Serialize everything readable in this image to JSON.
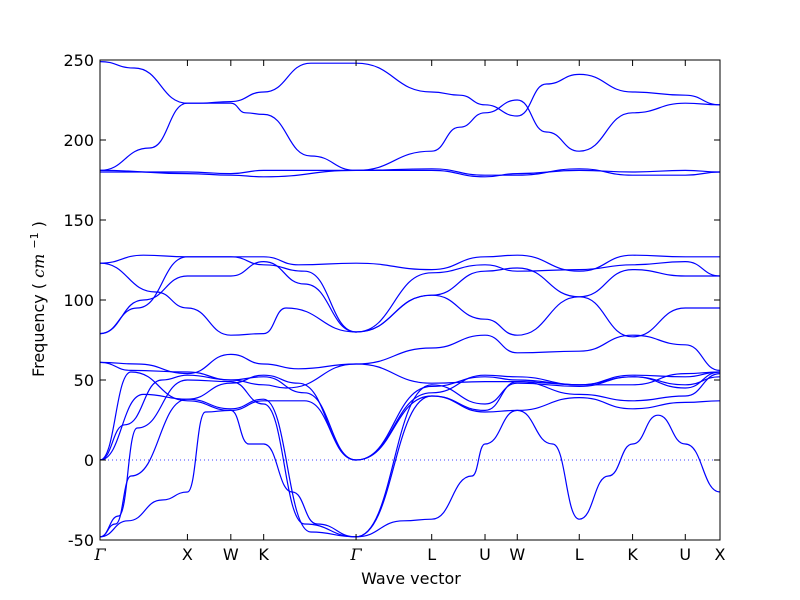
{
  "chart_data": {
    "type": "line",
    "xlabel": "Wave vector",
    "ylabel_text": "Frequency",
    "ylabel_unit_base": "cm",
    "ylabel_unit_exp": "−1",
    "ylim": [
      -50,
      250
    ],
    "yticks": [
      -50,
      0,
      50,
      100,
      150,
      200,
      250
    ],
    "xlim": [
      0,
      10
    ],
    "kpoints": [
      {
        "label": "Γ",
        "x": 0.0
      },
      {
        "label": "X",
        "x": 1.41
      },
      {
        "label": "W",
        "x": 2.11
      },
      {
        "label": "K",
        "x": 2.64
      },
      {
        "label": "Γ",
        "x": 4.13
      },
      {
        "label": "L",
        "x": 5.35
      },
      {
        "label": "U",
        "x": 6.21
      },
      {
        "label": "W",
        "x": 6.73
      },
      {
        "label": "L",
        "x": 7.73
      },
      {
        "label": "K",
        "x": 8.59
      },
      {
        "label": "U",
        "x": 9.44
      },
      {
        "label": "X",
        "x": 10.0
      }
    ],
    "zero_line": {
      "y": 0,
      "style": "dotted"
    },
    "color": "#0000ff",
    "grid": false,
    "series": [
      {
        "x": [
          0,
          0.55,
          1.41,
          1.6,
          2.11,
          2.64,
          3.4,
          4.13,
          5.35,
          5.8,
          6.21,
          6.73,
          7.2,
          7.73,
          8.59,
          9.44,
          10.0
        ],
        "y": [
          249,
          245,
          223,
          223,
          224,
          230,
          248,
          248,
          230,
          228,
          222,
          215,
          235,
          241,
          230,
          228,
          222
        ]
      },
      {
        "x": [
          0,
          0.8,
          1.41,
          2.11,
          2.35,
          2.64,
          3.4,
          4.13,
          5.35,
          5.8,
          6.21,
          6.73,
          7.2,
          7.73,
          8.59,
          9.44,
          10.0
        ],
        "y": [
          181,
          195,
          223,
          223,
          217,
          216,
          190,
          181,
          193,
          208,
          217,
          225,
          205,
          193,
          217,
          223,
          222
        ]
      },
      {
        "x": [
          0,
          1.41,
          2.11,
          2.64,
          4.13,
          5.35,
          6.21,
          6.73,
          7.73,
          8.59,
          9.44,
          10.0
        ],
        "y": [
          181,
          179,
          178,
          177,
          181,
          182,
          178,
          178,
          182,
          178,
          178,
          180
        ]
      },
      {
        "x": [
          0,
          1.41,
          2.11,
          2.64,
          4.13,
          5.35,
          6.21,
          6.73,
          7.73,
          8.59,
          9.44,
          10.0
        ],
        "y": [
          180,
          180,
          179,
          181,
          181,
          181,
          177,
          179,
          181,
          180,
          181,
          180
        ]
      },
      {
        "x": [
          0,
          0.7,
          1.41,
          2.11,
          2.64,
          3.2,
          4.13,
          5.35,
          6.21,
          6.73,
          7.73,
          8.59,
          9.44,
          10.0
        ],
        "y": [
          123,
          128,
          127,
          127,
          127,
          122,
          123,
          119,
          127,
          128,
          118,
          128,
          127,
          127
        ]
      },
      {
        "x": [
          0,
          0.9,
          1.41,
          2.11,
          2.64,
          3.0,
          4.13,
          5.35,
          6.21,
          6.73,
          7.73,
          8.59,
          9.44,
          10.0
        ],
        "y": [
          123,
          105,
          95,
          78,
          79,
          95,
          80,
          103,
          88,
          78,
          102,
          77,
          95,
          95
        ]
      },
      {
        "x": [
          0,
          0.7,
          1.41,
          2.11,
          2.64,
          3.3,
          4.13,
          5.35,
          6.21,
          6.73,
          7.73,
          8.59,
          9.44,
          10.0
        ],
        "y": [
          79,
          100,
          115,
          115,
          124,
          110,
          80,
          117,
          122,
          118,
          119,
          122,
          124,
          115
        ]
      },
      {
        "x": [
          0,
          0.6,
          1.41,
          2.11,
          2.64,
          3.3,
          4.13,
          5.35,
          6.21,
          6.73,
          7.73,
          8.59,
          9.44,
          10.0
        ],
        "y": [
          79,
          95,
          127,
          127,
          122,
          118,
          80,
          103,
          118,
          120,
          102,
          119,
          115,
          115
        ]
      },
      {
        "x": [
          0,
          0.5,
          1.41,
          2.11,
          2.64,
          3.0,
          4.13,
          5.35,
          6.21,
          6.73,
          7.73,
          8.59,
          9.44,
          10.0
        ],
        "y": [
          61,
          56,
          55,
          50,
          47,
          45,
          60,
          70,
          78,
          67,
          68,
          78,
          72,
          56
        ]
      },
      {
        "x": [
          0,
          0.6,
          1.41,
          2.11,
          2.64,
          3.2,
          4.13,
          5.35,
          6.21,
          6.73,
          7.73,
          8.59,
          9.44,
          10.0
        ],
        "y": [
          61,
          60,
          54,
          66,
          60,
          57,
          60,
          48,
          49,
          49,
          47,
          53,
          52,
          55
        ]
      },
      {
        "x": [
          0,
          0.7,
          1.41,
          2.11,
          2.64,
          3.2,
          4.13,
          5.35,
          6.21,
          6.73,
          7.73,
          8.59,
          9.44,
          10.0
        ],
        "y": [
          0,
          41,
          38,
          48,
          53,
          48,
          0,
          46,
          52,
          50,
          47,
          52,
          47,
          52
        ]
      },
      {
        "x": [
          0,
          0.4,
          1.0,
          1.41,
          2.11,
          2.64,
          3.3,
          4.13,
          5.35,
          6.21,
          6.73,
          7.73,
          8.59,
          9.44,
          10.0
        ],
        "y": [
          0,
          22,
          50,
          53,
          50,
          52,
          42,
          0,
          42,
          53,
          52,
          47,
          47,
          54,
          55
        ]
      },
      {
        "x": [
          0,
          0.5,
          1.41,
          2.11,
          2.64,
          3.3,
          4.13,
          5.35,
          6.21,
          6.73,
          7.73,
          8.59,
          9.44,
          10.0
        ],
        "y": [
          0,
          55,
          37,
          31,
          37,
          37,
          0,
          40,
          30,
          31,
          39,
          32,
          36,
          37
        ]
      },
      {
        "x": [
          0,
          0.45,
          1.0,
          1.41,
          1.7,
          2.11,
          2.4,
          2.64,
          3.1,
          3.5,
          4.13,
          4.9,
          5.35,
          6.0,
          6.21,
          6.73,
          7.3,
          7.73,
          8.2,
          8.59,
          9.0,
          9.44,
          10.0
        ],
        "y": [
          -48,
          -38,
          -25,
          -20,
          30,
          31,
          10,
          10,
          -20,
          -40,
          -48,
          -38,
          -37,
          -10,
          10,
          31,
          10,
          -37,
          -10,
          10,
          28,
          10,
          -20
        ]
      },
      {
        "x": [
          0,
          0.3,
          0.6,
          1.41,
          2.11,
          2.64,
          3.3,
          4.13,
          5.35,
          6.21,
          6.73,
          7.73,
          8.59,
          9.44,
          10.0
        ],
        "y": [
          -48,
          -35,
          20,
          50,
          49,
          35,
          -40,
          -48,
          40,
          31,
          49,
          41,
          37,
          40,
          54
        ]
      },
      {
        "x": [
          0,
          0.25,
          0.5,
          1.41,
          2.11,
          2.64,
          3.4,
          4.13,
          5.35,
          6.21,
          6.73,
          7.73,
          8.59,
          9.44,
          10.0
        ],
        "y": [
          -48,
          -40,
          -10,
          38,
          32,
          38,
          -45,
          -48,
          47,
          35,
          48,
          46,
          52,
          45,
          55
        ]
      }
    ]
  }
}
